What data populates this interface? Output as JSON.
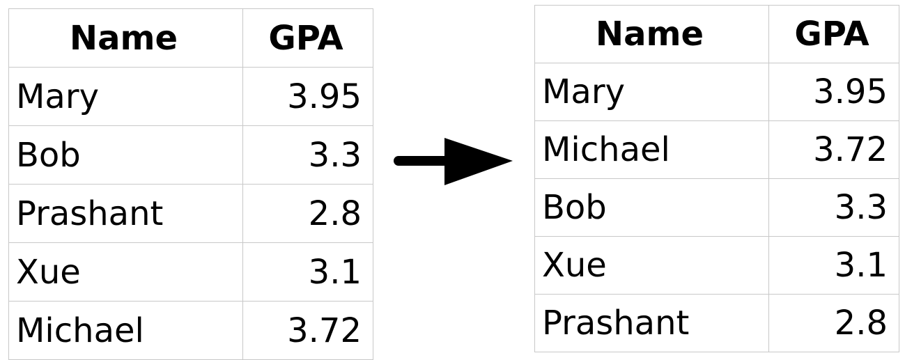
{
  "before_table": {
    "headers": {
      "name": "Name",
      "gpa": "GPA"
    },
    "rows": [
      {
        "name": "Mary",
        "gpa": "3.95"
      },
      {
        "name": "Bob",
        "gpa": "3.3"
      },
      {
        "name": "Prashant",
        "gpa": "2.8"
      },
      {
        "name": "Xue",
        "gpa": "3.1"
      },
      {
        "name": "Michael",
        "gpa": "3.72"
      }
    ]
  },
  "after_table": {
    "headers": {
      "name": "Name",
      "gpa": "GPA"
    },
    "rows": [
      {
        "name": "Mary",
        "gpa": "3.95"
      },
      {
        "name": "Michael",
        "gpa": "3.72"
      },
      {
        "name": "Bob",
        "gpa": "3.3"
      },
      {
        "name": "Xue",
        "gpa": "3.1"
      },
      {
        "name": "Prashant",
        "gpa": "2.8"
      }
    ]
  },
  "arrow": {
    "icon": "arrow-right-icon",
    "color": "#000000"
  }
}
